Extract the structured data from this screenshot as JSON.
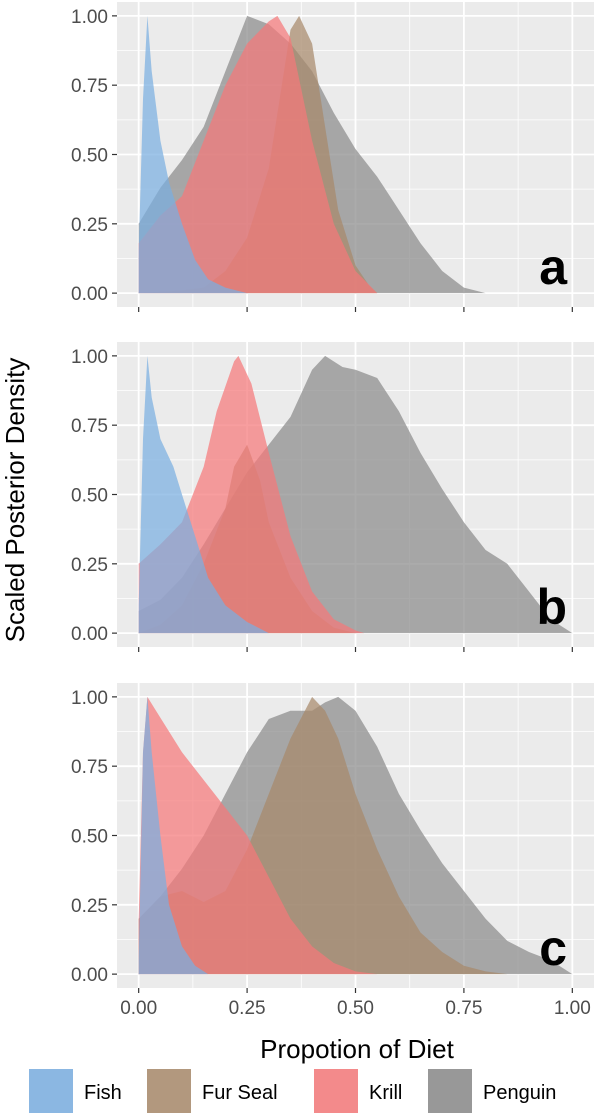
{
  "colors": {
    "Fish": "#7aaee0",
    "Fur Seal": "#a8896b",
    "Krill": "#f5797a",
    "Penguin": "#8a8a8a",
    "panel_background": "#ebebeb",
    "grid": "#ffffff"
  },
  "chart_data": {
    "type": "area",
    "xlabel": "Propotion of Diet",
    "ylabel": "Scaled Posterior Density",
    "xlim": [
      -0.05,
      1.05
    ],
    "ylim": [
      -0.05,
      1.05
    ],
    "x_ticks": [
      0,
      0.25,
      0.5,
      0.75,
      1
    ],
    "x_tick_labels": [
      "0.00",
      "0.25",
      "0.50",
      "0.75",
      "1.00"
    ],
    "y_ticks": [
      0,
      0.25,
      0.5,
      0.75,
      1
    ],
    "y_tick_labels": [
      "0.00",
      "0.25",
      "0.50",
      "0.75",
      "1.00"
    ],
    "grid": true,
    "legend_position": "bottom",
    "legend": [
      "Fish",
      "Fur Seal",
      "Krill",
      "Penguin"
    ],
    "panels": [
      {
        "label": "a",
        "series": [
          {
            "name": "Penguin",
            "points": [
              [
                0,
                0.25
              ],
              [
                0.05,
                0.38
              ],
              [
                0.1,
                0.48
              ],
              [
                0.15,
                0.6
              ],
              [
                0.2,
                0.8
              ],
              [
                0.25,
                1.0
              ],
              [
                0.3,
                0.97
              ],
              [
                0.35,
                0.9
              ],
              [
                0.4,
                0.8
              ],
              [
                0.45,
                0.65
              ],
              [
                0.5,
                0.52
              ],
              [
                0.55,
                0.42
              ],
              [
                0.6,
                0.3
              ],
              [
                0.65,
                0.18
              ],
              [
                0.7,
                0.08
              ],
              [
                0.75,
                0.02
              ],
              [
                0.8,
                0.0
              ]
            ]
          },
          {
            "name": "Fur Seal",
            "points": [
              [
                0,
                0.0
              ],
              [
                0.1,
                0.01
              ],
              [
                0.15,
                0.02
              ],
              [
                0.2,
                0.08
              ],
              [
                0.25,
                0.2
              ],
              [
                0.3,
                0.45
              ],
              [
                0.33,
                0.75
              ],
              [
                0.35,
                0.95
              ],
              [
                0.37,
                1.0
              ],
              [
                0.4,
                0.9
              ],
              [
                0.43,
                0.6
              ],
              [
                0.46,
                0.3
              ],
              [
                0.5,
                0.1
              ],
              [
                0.53,
                0.03
              ],
              [
                0.55,
                0.0
              ]
            ]
          },
          {
            "name": "Krill",
            "points": [
              [
                0,
                0.18
              ],
              [
                0.05,
                0.28
              ],
              [
                0.1,
                0.35
              ],
              [
                0.15,
                0.55
              ],
              [
                0.2,
                0.75
              ],
              [
                0.25,
                0.9
              ],
              [
                0.3,
                0.98
              ],
              [
                0.32,
                1.0
              ],
              [
                0.35,
                0.92
              ],
              [
                0.4,
                0.55
              ],
              [
                0.45,
                0.25
              ],
              [
                0.5,
                0.08
              ],
              [
                0.55,
                0.0
              ]
            ]
          },
          {
            "name": "Fish",
            "points": [
              [
                0,
                0.15
              ],
              [
                0.01,
                0.7
              ],
              [
                0.02,
                1.0
              ],
              [
                0.03,
                0.8
              ],
              [
                0.05,
                0.55
              ],
              [
                0.07,
                0.4
              ],
              [
                0.1,
                0.25
              ],
              [
                0.13,
                0.12
              ],
              [
                0.16,
                0.05
              ],
              [
                0.2,
                0.02
              ],
              [
                0.25,
                0.0
              ]
            ]
          }
        ]
      },
      {
        "label": "b",
        "series": [
          {
            "name": "Penguin",
            "points": [
              [
                0,
                0.08
              ],
              [
                0.05,
                0.12
              ],
              [
                0.1,
                0.2
              ],
              [
                0.15,
                0.32
              ],
              [
                0.2,
                0.45
              ],
              [
                0.25,
                0.58
              ],
              [
                0.3,
                0.68
              ],
              [
                0.35,
                0.78
              ],
              [
                0.4,
                0.95
              ],
              [
                0.43,
                1.0
              ],
              [
                0.47,
                0.96
              ],
              [
                0.5,
                0.95
              ],
              [
                0.55,
                0.92
              ],
              [
                0.6,
                0.8
              ],
              [
                0.65,
                0.65
              ],
              [
                0.7,
                0.52
              ],
              [
                0.75,
                0.4
              ],
              [
                0.8,
                0.3
              ],
              [
                0.85,
                0.25
              ],
              [
                0.9,
                0.15
              ],
              [
                0.95,
                0.05
              ],
              [
                1.0,
                0.0
              ]
            ]
          },
          {
            "name": "Fur Seal",
            "points": [
              [
                0,
                0.0
              ],
              [
                0.05,
                0.03
              ],
              [
                0.1,
                0.1
              ],
              [
                0.15,
                0.25
              ],
              [
                0.2,
                0.45
              ],
              [
                0.22,
                0.6
              ],
              [
                0.25,
                0.68
              ],
              [
                0.28,
                0.55
              ],
              [
                0.3,
                0.4
              ],
              [
                0.35,
                0.2
              ],
              [
                0.4,
                0.08
              ],
              [
                0.45,
                0.02
              ],
              [
                0.5,
                0.0
              ]
            ]
          },
          {
            "name": "Krill",
            "points": [
              [
                0,
                0.25
              ],
              [
                0.05,
                0.32
              ],
              [
                0.1,
                0.4
              ],
              [
                0.15,
                0.6
              ],
              [
                0.18,
                0.8
              ],
              [
                0.22,
                0.98
              ],
              [
                0.23,
                1.0
              ],
              [
                0.26,
                0.9
              ],
              [
                0.3,
                0.65
              ],
              [
                0.35,
                0.35
              ],
              [
                0.4,
                0.15
              ],
              [
                0.45,
                0.05
              ],
              [
                0.5,
                0.01
              ],
              [
                0.52,
                0.0
              ]
            ]
          },
          {
            "name": "Fish",
            "points": [
              [
                0,
                0.1
              ],
              [
                0.01,
                0.7
              ],
              [
                0.02,
                1.0
              ],
              [
                0.03,
                0.85
              ],
              [
                0.05,
                0.7
              ],
              [
                0.08,
                0.6
              ],
              [
                0.1,
                0.5
              ],
              [
                0.13,
                0.35
              ],
              [
                0.16,
                0.2
              ],
              [
                0.2,
                0.1
              ],
              [
                0.25,
                0.04
              ],
              [
                0.3,
                0.0
              ]
            ]
          }
        ]
      },
      {
        "label": "c",
        "series": [
          {
            "name": "Penguin",
            "points": [
              [
                0,
                0.2
              ],
              [
                0.05,
                0.28
              ],
              [
                0.1,
                0.38
              ],
              [
                0.15,
                0.5
              ],
              [
                0.2,
                0.65
              ],
              [
                0.25,
                0.8
              ],
              [
                0.3,
                0.92
              ],
              [
                0.35,
                0.95
              ],
              [
                0.4,
                0.95
              ],
              [
                0.43,
                0.98
              ],
              [
                0.46,
                1.0
              ],
              [
                0.5,
                0.95
              ],
              [
                0.55,
                0.82
              ],
              [
                0.6,
                0.65
              ],
              [
                0.65,
                0.52
              ],
              [
                0.7,
                0.4
              ],
              [
                0.75,
                0.3
              ],
              [
                0.8,
                0.2
              ],
              [
                0.85,
                0.12
              ],
              [
                0.9,
                0.08
              ],
              [
                0.95,
                0.05
              ],
              [
                1.0,
                0.0
              ]
            ]
          },
          {
            "name": "Fur Seal",
            "points": [
              [
                0,
                0.2
              ],
              [
                0.05,
                0.28
              ],
              [
                0.1,
                0.3
              ],
              [
                0.15,
                0.26
              ],
              [
                0.2,
                0.3
              ],
              [
                0.25,
                0.45
              ],
              [
                0.3,
                0.65
              ],
              [
                0.35,
                0.85
              ],
              [
                0.4,
                1.0
              ],
              [
                0.43,
                0.95
              ],
              [
                0.46,
                0.85
              ],
              [
                0.5,
                0.65
              ],
              [
                0.55,
                0.45
              ],
              [
                0.6,
                0.28
              ],
              [
                0.65,
                0.15
              ],
              [
                0.7,
                0.08
              ],
              [
                0.75,
                0.03
              ],
              [
                0.8,
                0.01
              ],
              [
                0.85,
                0.0
              ]
            ]
          },
          {
            "name": "Krill",
            "points": [
              [
                0,
                0.2
              ],
              [
                0.01,
                0.8
              ],
              [
                0.02,
                1.0
              ],
              [
                0.04,
                0.95
              ],
              [
                0.06,
                0.9
              ],
              [
                0.1,
                0.8
              ],
              [
                0.15,
                0.7
              ],
              [
                0.2,
                0.6
              ],
              [
                0.25,
                0.5
              ],
              [
                0.3,
                0.35
              ],
              [
                0.35,
                0.2
              ],
              [
                0.4,
                0.1
              ],
              [
                0.45,
                0.04
              ],
              [
                0.5,
                0.01
              ],
              [
                0.55,
                0.0
              ]
            ]
          },
          {
            "name": "Fish",
            "points": [
              [
                0,
                0.05
              ],
              [
                0.01,
                0.8
              ],
              [
                0.02,
                1.0
              ],
              [
                0.03,
                0.8
              ],
              [
                0.05,
                0.5
              ],
              [
                0.07,
                0.25
              ],
              [
                0.1,
                0.1
              ],
              [
                0.13,
                0.03
              ],
              [
                0.16,
                0.0
              ]
            ]
          }
        ]
      }
    ]
  }
}
